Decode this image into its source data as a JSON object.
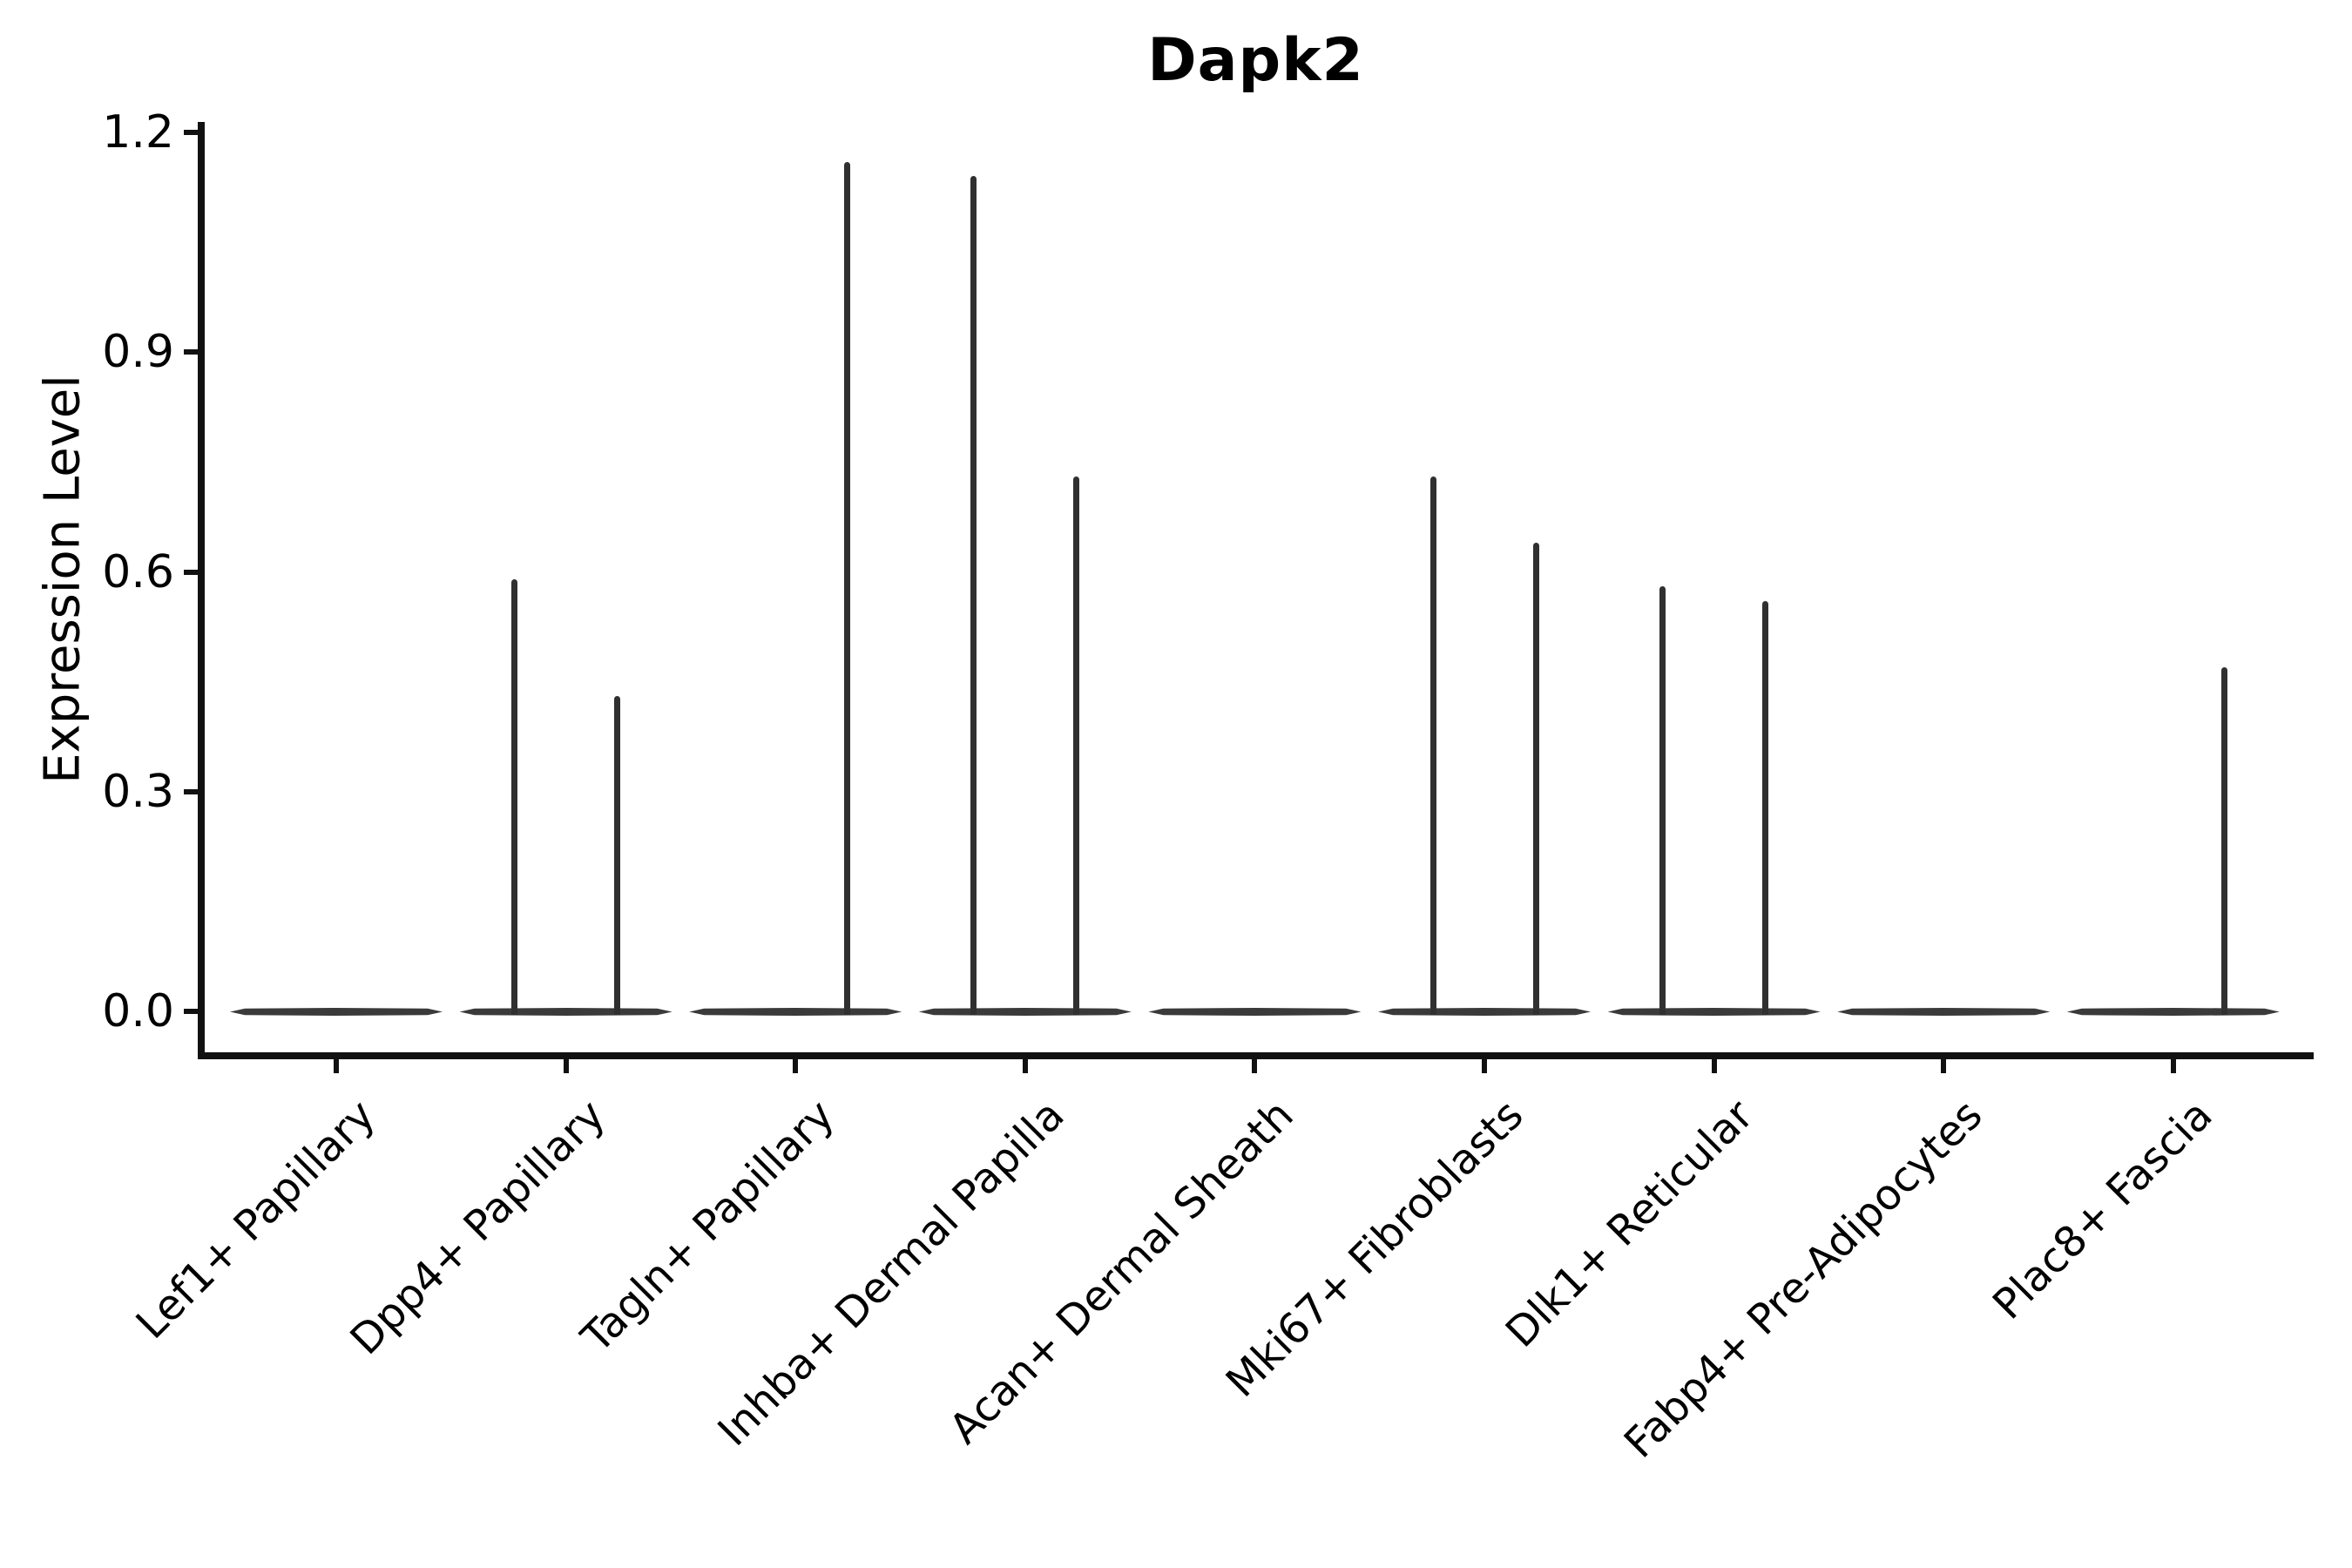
{
  "title": "Dapk2",
  "y_axis": {
    "label": "Expression Level",
    "tick_labels": [
      "0.0",
      "0.3",
      "0.6",
      "0.9",
      "1.2"
    ]
  },
  "chart_data": {
    "type": "violin",
    "title": "Dapk2",
    "xlabel": "",
    "ylabel": "Expression Level",
    "ylim": [
      -0.06,
      1.21
    ],
    "yticks": [
      0.0,
      0.3,
      0.6,
      0.9,
      1.2
    ],
    "grid": false,
    "legend_position": "none",
    "categories": [
      "Lef1+ Papillary",
      "Dpp4+ Papillary",
      "Tagln+ Papillary",
      "Inhba+ Dermal Papilla",
      "Acan+ Dermal Sheath",
      "Mki67+ Fibroblasts",
      "Dlk1+ Reticular",
      "Fabp4+ Pre-Adipocytes",
      "Plac8+ Fascia"
    ],
    "violin_style": "flat base at 0 with thin density spikes; two sub-violins per category offset ±0.22",
    "series": [
      {
        "name": "left sub-violin max expression",
        "values": [
          0,
          0.59,
          0,
          1.14,
          0,
          0.73,
          0.58,
          0,
          0
        ]
      },
      {
        "name": "right sub-violin max expression",
        "values": [
          0,
          0.43,
          1.16,
          0.73,
          0,
          0.64,
          0.56,
          0,
          0.47
        ]
      }
    ],
    "baseline_value": 0.0,
    "line_color": "#333333"
  }
}
